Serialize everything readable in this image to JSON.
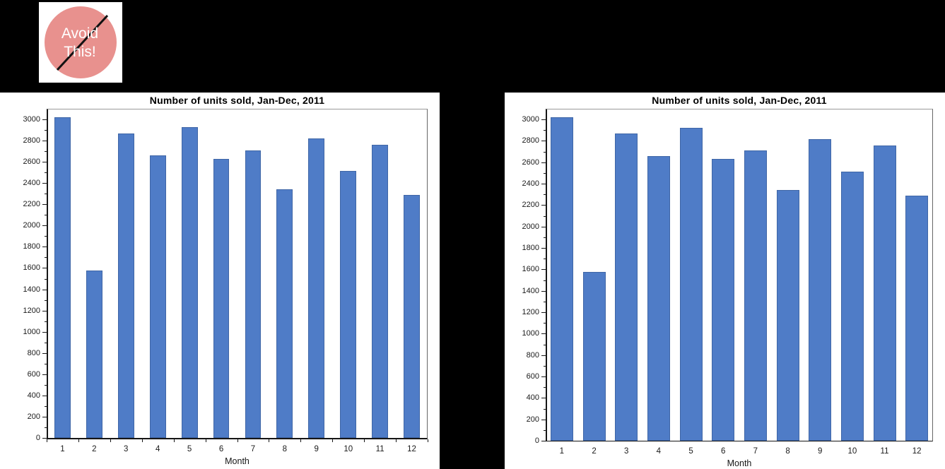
{
  "badge": {
    "line1": "Avoid",
    "line2": "This!",
    "circle_fill": "#E8918E",
    "circle_border": "#111111",
    "text_color": "#FFFFFF"
  },
  "chart_data": [
    {
      "type": "bar",
      "title": "Number of units sold, Jan-Dec, 2011",
      "xlabel": "Month",
      "ylabel": "",
      "categories": [
        "1",
        "2",
        "3",
        "4",
        "5",
        "6",
        "7",
        "8",
        "9",
        "10",
        "11",
        "12"
      ],
      "values": [
        3020,
        1580,
        2870,
        2660,
        2925,
        2630,
        2710,
        2340,
        2820,
        2515,
        2760,
        2290
      ],
      "ylim": [
        0,
        3100
      ],
      "ytick_max": 3000,
      "ytick_major": 200,
      "ytick_minor": 100,
      "grid": false,
      "legend": "none",
      "bar_color": "#4F7CC7",
      "bar_border_color": "#3F66A6",
      "x_boundary_ticks": true,
      "bar_relative_width": 0.51
    },
    {
      "type": "bar",
      "title": "Number of units sold, Jan-Dec, 2011",
      "xlabel": "Month",
      "ylabel": "",
      "categories": [
        "1",
        "2",
        "3",
        "4",
        "5",
        "6",
        "7",
        "8",
        "9",
        "10",
        "11",
        "12"
      ],
      "values": [
        3020,
        1580,
        2870,
        2660,
        2925,
        2630,
        2710,
        2340,
        2820,
        2515,
        2760,
        2290
      ],
      "ylim": [
        0,
        3100
      ],
      "ytick_max": 3000,
      "ytick_major": 200,
      "ytick_minor": 100,
      "grid": false,
      "legend": "none",
      "bar_color": "#4F7CC7",
      "bar_border_color": "#3F66A6",
      "x_boundary_ticks": false,
      "bar_relative_width": 0.7
    }
  ]
}
